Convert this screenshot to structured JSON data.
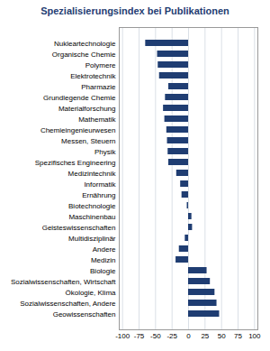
{
  "chart_data": {
    "type": "bar",
    "orientation": "horizontal",
    "title": "Spezialisierungsindex bei Publikationen",
    "categories": [
      "Nukleartechnologie",
      "Organische Chemie",
      "Polymere",
      "Elektrotechnik",
      "Pharmazie",
      "Grundlegende Chemie",
      "Materialforschung",
      "Mathematik",
      "Chemieingenieurwesen",
      "Messen, Steuern",
      "Physik",
      "Spezifisches Engineering",
      "Medizintechnik",
      "Informatik",
      "Ernährung",
      "Biotechnologie",
      "Maschinenbau",
      "Geisteswissenschaften",
      "Multidisziplinär",
      "Andere",
      "Medizin",
      "Biologie",
      "Sozialwissenschaften, Wirtschaft",
      "Ökologie, Klima",
      "Sozialwissenschaften, Andere",
      "Geowissenschaften"
    ],
    "values": [
      -65,
      -47,
      -46,
      -44,
      -30,
      -35,
      -38,
      -36,
      -33,
      -32,
      -31,
      -30,
      -18,
      -12,
      -10,
      -2,
      5,
      6,
      -5,
      -14,
      -19,
      28,
      33,
      40,
      43,
      47
    ],
    "color": "#1f3d72",
    "xlim": [
      -105,
      105
    ],
    "xticks": [
      -100,
      -75,
      -50,
      -25,
      0,
      25,
      50,
      75,
      100
    ],
    "grid": true
  }
}
